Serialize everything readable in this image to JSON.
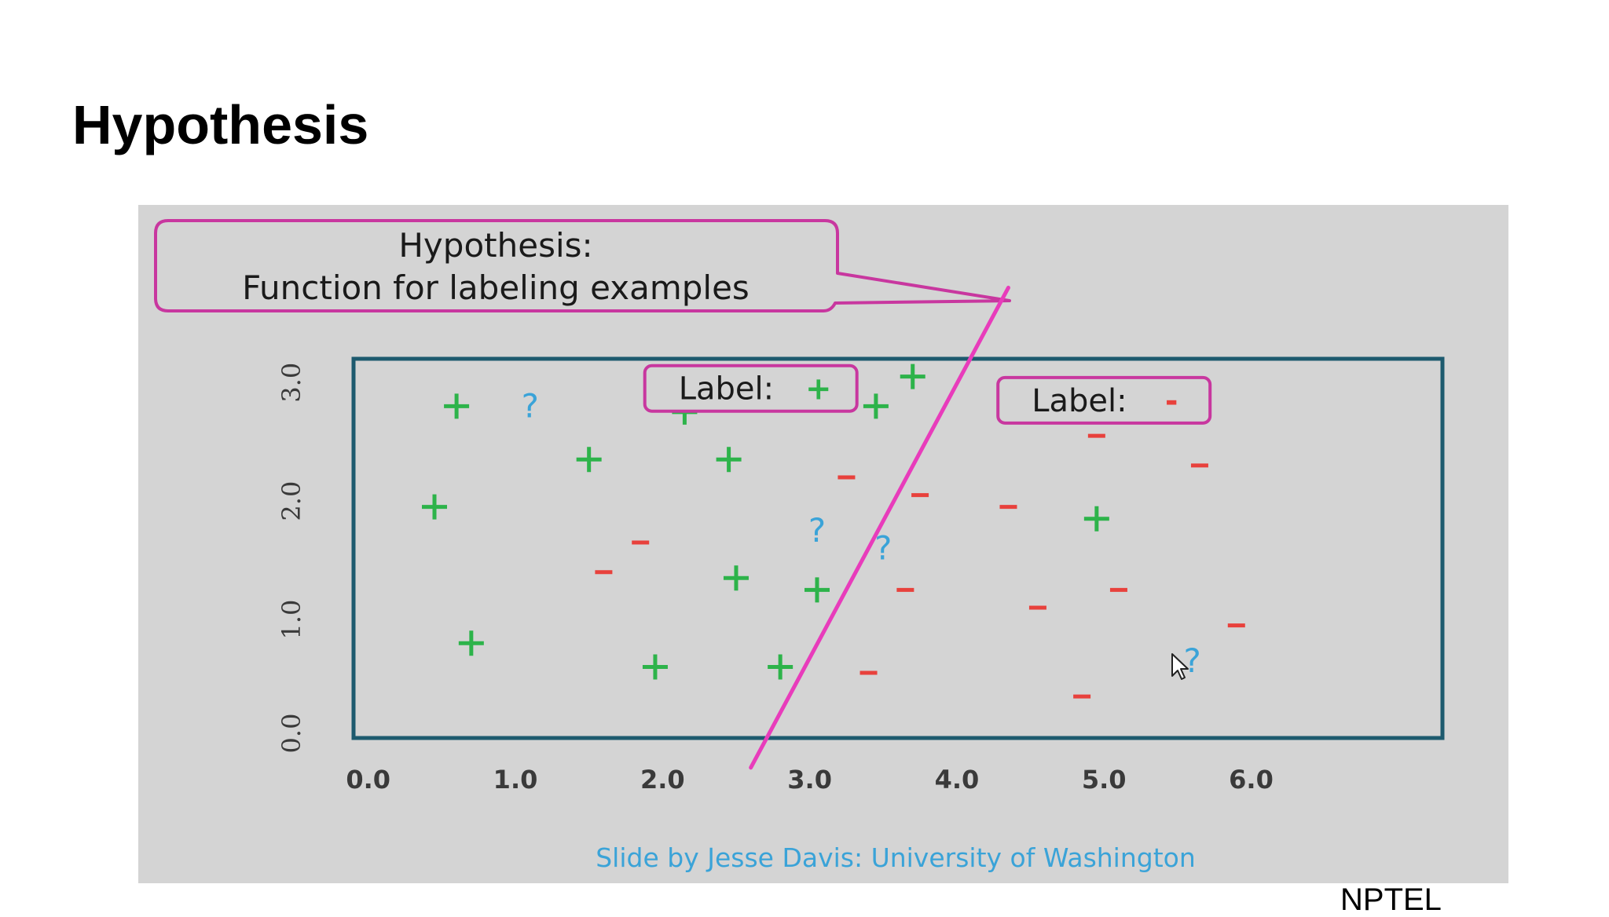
{
  "slide": {
    "title": "Hypothesis",
    "footer": "NPTEL"
  },
  "callout": {
    "line1": "Hypothesis:",
    "line2": "Function for labeling examples"
  },
  "credit": "Slide by Jesse Davis: University of Washington",
  "colors": {
    "plus": "#2db34a",
    "minus": "#e8413c",
    "unknown": "#3aa3d8",
    "hypothesis_line": "#e83cbb",
    "frame": "#1d5a6e",
    "callout_border": "#c8379f",
    "credit": "#3aa3d8"
  },
  "chart_data": {
    "type": "scatter",
    "xlabel": "",
    "ylabel": "",
    "xlim": [
      -0.1,
      7.3
    ],
    "ylim": [
      0.0,
      3.2
    ],
    "x_ticks": [
      "0.0",
      "1.0",
      "2.0",
      "3.0",
      "4.0",
      "5.0",
      "6.0"
    ],
    "x_tick_values": [
      0,
      1,
      2,
      3,
      4,
      5,
      6
    ],
    "y_ticks": [
      "0.0",
      "1.0",
      "2.0",
      "3.0"
    ],
    "y_tick_values": [
      0,
      1,
      2,
      3
    ],
    "region_labels": [
      {
        "prefix": "Label: ",
        "symbol": "+",
        "kind": "plus",
        "x": 2.6,
        "y": 2.95
      },
      {
        "prefix": "Label: ",
        "symbol": "-",
        "kind": "minus",
        "x": 5.0,
        "y": 2.85
      }
    ],
    "hypothesis_line": {
      "x1": 2.6,
      "y1": -0.25,
      "x2": 4.35,
      "y2": 3.8
    },
    "series": [
      {
        "kind": "plus",
        "symbol": "+",
        "points": [
          [
            0.6,
            2.8
          ],
          [
            2.15,
            2.75
          ],
          [
            3.45,
            2.8
          ],
          [
            3.7,
            3.05
          ],
          [
            1.5,
            2.35
          ],
          [
            2.45,
            2.35
          ],
          [
            0.45,
            1.95
          ],
          [
            4.95,
            1.85
          ],
          [
            2.5,
            1.35
          ],
          [
            3.05,
            1.25
          ],
          [
            0.7,
            0.8
          ],
          [
            1.95,
            0.6
          ],
          [
            2.8,
            0.6
          ]
        ]
      },
      {
        "kind": "minus",
        "symbol": "-",
        "points": [
          [
            4.95,
            2.55
          ],
          [
            5.65,
            2.3
          ],
          [
            3.25,
            2.2
          ],
          [
            3.75,
            2.05
          ],
          [
            4.35,
            1.95
          ],
          [
            1.85,
            1.65
          ],
          [
            1.6,
            1.4
          ],
          [
            3.65,
            1.25
          ],
          [
            5.1,
            1.25
          ],
          [
            4.55,
            1.1
          ],
          [
            5.9,
            0.95
          ],
          [
            3.4,
            0.55
          ],
          [
            4.85,
            0.35
          ]
        ]
      },
      {
        "kind": "unknown",
        "symbol": "?",
        "points": [
          [
            1.1,
            2.8
          ],
          [
            3.05,
            1.75
          ],
          [
            3.5,
            1.6
          ],
          [
            5.6,
            0.65
          ]
        ]
      }
    ]
  }
}
